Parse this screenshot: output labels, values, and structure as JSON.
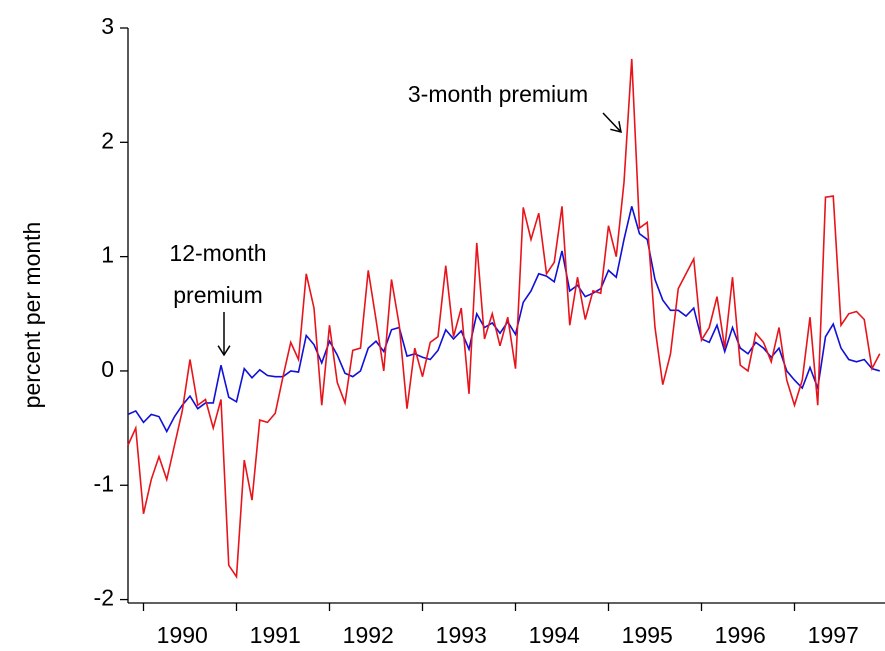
{
  "chart_data": {
    "type": "line",
    "y_label": "percent per month",
    "categories": [
      null,
      null,
      null,
      null,
      null,
      null,
      null,
      "1990",
      null,
      null,
      null,
      null,
      null,
      null,
      null,
      null,
      null,
      null,
      null,
      "1991",
      null,
      null,
      null,
      null,
      null,
      null,
      null,
      null,
      null,
      null,
      null,
      "1992",
      null,
      null,
      null,
      null,
      null,
      null,
      null,
      null,
      null,
      null,
      null,
      "1993",
      null,
      null,
      null,
      null,
      null,
      null,
      null,
      null,
      null,
      null,
      null,
      "1994",
      null,
      null,
      null,
      null,
      null,
      null,
      null,
      null,
      null,
      null,
      null,
      "1995",
      null,
      null,
      null,
      null,
      null,
      null,
      null,
      null,
      null,
      null,
      null,
      "1996",
      null,
      null,
      null,
      null,
      null,
      null,
      null,
      null,
      null,
      null,
      null,
      "1997",
      null,
      null,
      null,
      null,
      null,
      null
    ],
    "series": [
      {
        "color": "#e8141b",
        "values": [
          -0.65,
          -0.5,
          -1.25,
          -0.95,
          -0.75,
          -0.95,
          -0.65,
          -0.35,
          0.1,
          -0.3,
          -0.25,
          -0.5,
          -0.25,
          -1.7,
          -1.8,
          -0.78,
          -1.13,
          -0.43,
          -0.45,
          -0.37,
          -0.05,
          0.25,
          0.1,
          0.85,
          0.55,
          -0.3,
          0.4,
          -0.1,
          -0.28,
          0.18,
          0.2,
          0.88,
          0.45,
          0.0,
          0.8,
          0.4,
          -0.33,
          0.2,
          -0.05,
          0.25,
          0.3,
          0.92,
          0.3,
          0.55,
          -0.2,
          1.12,
          0.28,
          0.5,
          0.22,
          0.47,
          0.02,
          1.43,
          1.15,
          1.38,
          0.85,
          0.95,
          1.44,
          0.4,
          0.82,
          0.45,
          0.7,
          0.68,
          1.27,
          1.0,
          1.65,
          2.73,
          1.25,
          1.3,
          0.38,
          -0.12,
          0.15,
          0.72,
          0.85,
          0.98,
          0.27,
          0.38,
          0.65,
          0.2,
          0.82,
          0.05,
          0.0,
          0.33,
          0.25,
          0.08,
          0.38,
          -0.08,
          -0.3,
          -0.08,
          0.47,
          -0.3,
          1.52,
          1.53,
          0.4,
          0.5,
          0.52,
          0.45,
          0.02,
          0.15
        ]
      },
      {
        "color": "#1010d8",
        "values": [
          -0.38,
          -0.35,
          -0.45,
          -0.38,
          -0.4,
          -0.53,
          -0.4,
          -0.3,
          -0.22,
          -0.33,
          -0.28,
          -0.28,
          0.05,
          -0.23,
          -0.27,
          0.02,
          -0.06,
          0.01,
          -0.04,
          -0.05,
          -0.05,
          0.0,
          -0.01,
          0.31,
          0.23,
          0.07,
          0.26,
          0.14,
          -0.02,
          -0.05,
          0.0,
          0.2,
          0.26,
          0.17,
          0.36,
          0.38,
          0.13,
          0.15,
          0.12,
          0.1,
          0.18,
          0.36,
          0.28,
          0.35,
          0.19,
          0.5,
          0.38,
          0.42,
          0.33,
          0.43,
          0.32,
          0.6,
          0.7,
          0.85,
          0.83,
          0.78,
          1.05,
          0.7,
          0.75,
          0.65,
          0.68,
          0.72,
          0.88,
          0.82,
          1.15,
          1.44,
          1.2,
          1.15,
          0.8,
          0.62,
          0.53,
          0.53,
          0.48,
          0.55,
          0.28,
          0.25,
          0.4,
          0.17,
          0.38,
          0.2,
          0.15,
          0.25,
          0.2,
          0.12,
          0.2,
          0.0,
          -0.08,
          -0.15,
          0.03,
          -0.15,
          0.3,
          0.41,
          0.2,
          0.1,
          0.08,
          0.1,
          0.02,
          0.0
        ]
      }
    ],
    "annotations": [
      {
        "lines": [
          "3-month premium"
        ]
      },
      {
        "lines": [
          "12-month",
          "premium"
        ]
      }
    ],
    "ylim": [
      -2.03,
      3
    ],
    "yticks": [
      -2,
      -1,
      0,
      1,
      2,
      3
    ],
    "grid": false
  }
}
